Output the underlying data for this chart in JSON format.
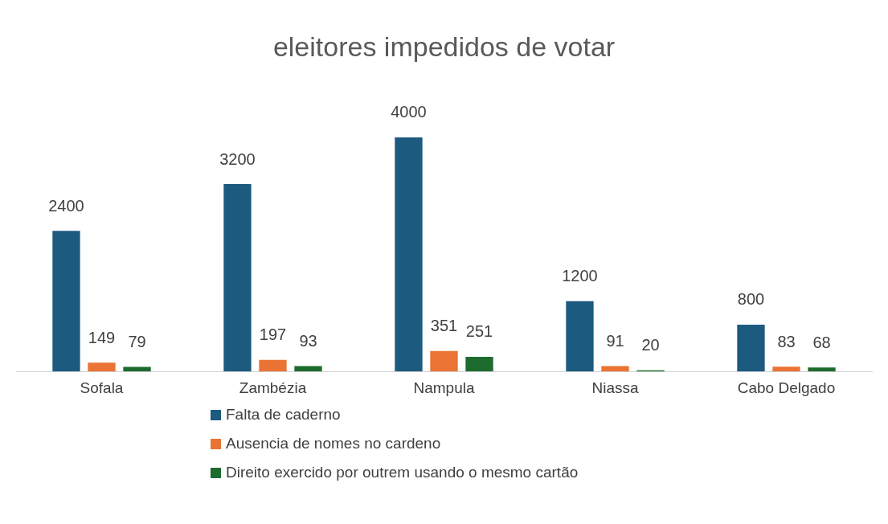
{
  "chart_data": {
    "type": "bar",
    "title": "eleitores impedidos de votar",
    "categories": [
      "Sofala",
      "Zambézia",
      "Nampula",
      "Niassa",
      "Cabo Delgado"
    ],
    "series": [
      {
        "name": "Falta de caderno",
        "color": "#1d5a80",
        "values": [
          2400,
          3200,
          4000,
          1200,
          800
        ]
      },
      {
        "name": "Ausencia de nomes no cardeno",
        "color": "#ea7433",
        "values": [
          149,
          197,
          351,
          91,
          83
        ]
      },
      {
        "name": "Direito exercido por outrem usando o mesmo cartão",
        "color": "#1e6b2e",
        "values": [
          79,
          93,
          251,
          20,
          68
        ]
      }
    ],
    "data_labels": true,
    "grid": false,
    "legend": "bottom"
  }
}
